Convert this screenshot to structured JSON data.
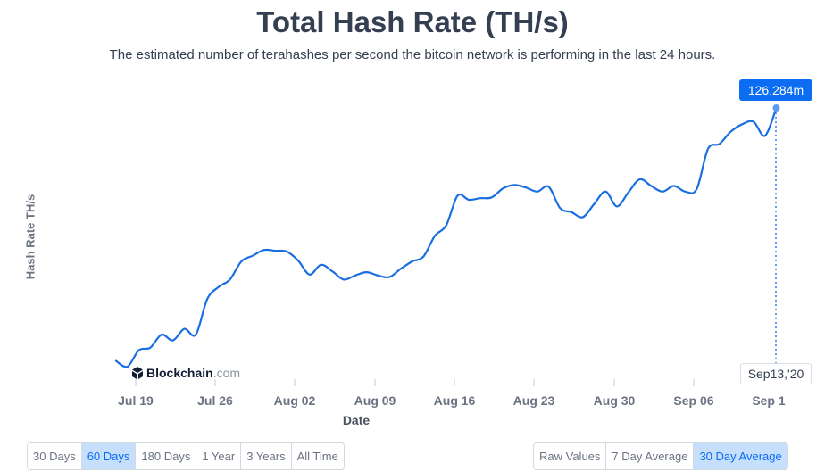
{
  "title": "Total Hash Rate (TH/s)",
  "subtitle": "The estimated number of terahashes per second the bitcoin network is performing in the last 24 hours.",
  "logo": {
    "bold": "Blockchain",
    "light": ".com"
  },
  "tooltip": {
    "value": "126.284m",
    "date": "Sep13,'20"
  },
  "range_buttons": [
    {
      "label": "30 Days",
      "active": false
    },
    {
      "label": "60 Days",
      "active": true
    },
    {
      "label": "180 Days",
      "active": false
    },
    {
      "label": "1 Year",
      "active": false
    },
    {
      "label": "3 Years",
      "active": false
    },
    {
      "label": "All Time",
      "active": false
    }
  ],
  "average_buttons": [
    {
      "label": "Raw Values",
      "active": false
    },
    {
      "label": "7 Day Average",
      "active": false
    },
    {
      "label": "30 Day Average",
      "active": true
    }
  ],
  "colors": {
    "line": "#1a6fe0",
    "accent": "#0c6cf2",
    "active_bg": "#c6dffd"
  },
  "chart_data": {
    "type": "line",
    "title": "Total Hash Rate (TH/s)",
    "xlabel": "Date",
    "ylabel": "Hash Rate TH/s",
    "grid": false,
    "x_tick_labels": [
      "Jul 19",
      "Jul 26",
      "Aug 02",
      "Aug 09",
      "Aug 16",
      "Aug 23",
      "Aug 30",
      "Sep 06",
      "Sep 1"
    ],
    "series": [
      {
        "values": [
          {
            "x": "2020-07-17",
            "y": 95.5
          },
          {
            "x": "2020-07-18",
            "y": 94.8
          },
          {
            "x": "2020-07-19",
            "y": 96.8
          },
          {
            "x": "2020-07-20",
            "y": 97.1
          },
          {
            "x": "2020-07-21",
            "y": 98.7
          },
          {
            "x": "2020-07-22",
            "y": 98.0
          },
          {
            "x": "2020-07-23",
            "y": 99.4
          },
          {
            "x": "2020-07-24",
            "y": 98.7
          },
          {
            "x": "2020-07-25",
            "y": 103.0
          },
          {
            "x": "2020-07-26",
            "y": 104.5
          },
          {
            "x": "2020-07-27",
            "y": 105.4
          },
          {
            "x": "2020-07-28",
            "y": 107.6
          },
          {
            "x": "2020-07-29",
            "y": 108.3
          },
          {
            "x": "2020-07-30",
            "y": 109.0
          },
          {
            "x": "2020-07-31",
            "y": 108.9
          },
          {
            "x": "2020-08-01",
            "y": 108.8
          },
          {
            "x": "2020-08-02",
            "y": 107.7
          },
          {
            "x": "2020-08-03",
            "y": 106.0
          },
          {
            "x": "2020-08-04",
            "y": 107.2
          },
          {
            "x": "2020-08-05",
            "y": 106.4
          },
          {
            "x": "2020-08-06",
            "y": 105.4
          },
          {
            "x": "2020-08-07",
            "y": 105.9
          },
          {
            "x": "2020-08-08",
            "y": 106.3
          },
          {
            "x": "2020-08-09",
            "y": 105.9
          },
          {
            "x": "2020-08-10",
            "y": 105.7
          },
          {
            "x": "2020-08-11",
            "y": 106.7
          },
          {
            "x": "2020-08-12",
            "y": 107.6
          },
          {
            "x": "2020-08-13",
            "y": 108.2
          },
          {
            "x": "2020-08-14",
            "y": 110.7
          },
          {
            "x": "2020-08-15",
            "y": 112.0
          },
          {
            "x": "2020-08-16",
            "y": 115.6
          },
          {
            "x": "2020-08-17",
            "y": 115.1
          },
          {
            "x": "2020-08-18",
            "y": 115.3
          },
          {
            "x": "2020-08-19",
            "y": 115.4
          },
          {
            "x": "2020-08-20",
            "y": 116.5
          },
          {
            "x": "2020-08-21",
            "y": 116.9
          },
          {
            "x": "2020-08-22",
            "y": 116.6
          },
          {
            "x": "2020-08-23",
            "y": 116.1
          },
          {
            "x": "2020-08-24",
            "y": 116.7
          },
          {
            "x": "2020-08-25",
            "y": 114.1
          },
          {
            "x": "2020-08-26",
            "y": 113.6
          },
          {
            "x": "2020-08-27",
            "y": 113.0
          },
          {
            "x": "2020-08-28",
            "y": 114.6
          },
          {
            "x": "2020-08-29",
            "y": 116.1
          },
          {
            "x": "2020-08-30",
            "y": 114.3
          },
          {
            "x": "2020-08-31",
            "y": 116.0
          },
          {
            "x": "2020-09-01",
            "y": 117.6
          },
          {
            "x": "2020-09-02",
            "y": 116.8
          },
          {
            "x": "2020-09-03",
            "y": 116.1
          },
          {
            "x": "2020-09-04",
            "y": 116.8
          },
          {
            "x": "2020-09-05",
            "y": 116.1
          },
          {
            "x": "2020-09-06",
            "y": 116.4
          },
          {
            "x": "2020-09-07",
            "y": 121.3
          },
          {
            "x": "2020-09-08",
            "y": 121.9
          },
          {
            "x": "2020-09-09",
            "y": 123.4
          },
          {
            "x": "2020-09-10",
            "y": 124.3
          },
          {
            "x": "2020-09-11",
            "y": 124.6
          },
          {
            "x": "2020-09-12",
            "y": 122.9
          },
          {
            "x": "2020-09-13",
            "y": 126.284
          }
        ]
      }
    ]
  }
}
